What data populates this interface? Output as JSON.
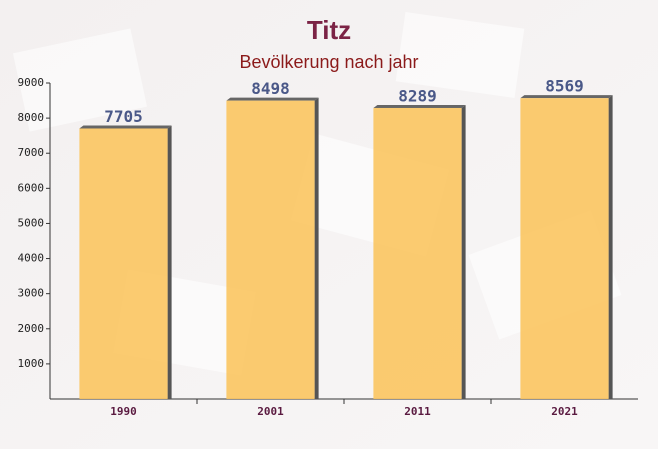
{
  "chart_data": {
    "type": "bar",
    "title": "Titz",
    "subtitle": "Bevölkerung nach jahr",
    "categories": [
      "1990",
      "2001",
      "2011",
      "2021"
    ],
    "values": [
      7705,
      8498,
      8289,
      8569
    ],
    "color": "#fbc560",
    "ylim": [
      0,
      9000
    ],
    "yticks": [
      1000,
      2000,
      3000,
      4000,
      5000,
      6000,
      7000,
      8000,
      9000
    ],
    "grid": false
  }
}
